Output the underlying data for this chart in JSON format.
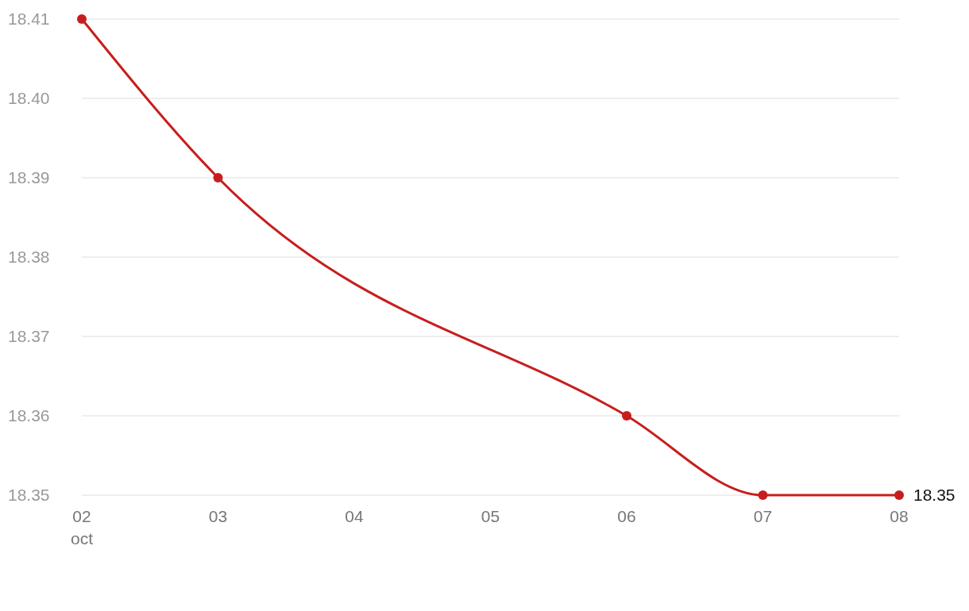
{
  "chart_data": {
    "type": "line",
    "x": [
      "--10-02",
      "--10-03",
      "--10-06",
      "--10-07",
      "--10-08"
    ],
    "series": [
      {
        "color": "#c71e1d",
        "values": [
          18.41,
          18.39,
          18.36,
          18.35,
          18.35
        ],
        "value_labels": [
          null,
          null,
          null,
          null,
          "18.35"
        ]
      }
    ],
    "xlim": [
      "--10-02",
      "--10-08"
    ],
    "xticks": [
      {
        "value": "--10-02",
        "label": "02\noct"
      },
      {
        "value": "--10-03",
        "label": "03"
      },
      {
        "value": "--10-04",
        "label": "04"
      },
      {
        "value": "--10-05",
        "label": "05"
      },
      {
        "value": "--10-06",
        "label": "06"
      },
      {
        "value": "--10-07",
        "label": "07"
      },
      {
        "value": "--10-08",
        "label": "08"
      }
    ],
    "ylim": [
      18.35,
      18.41
    ],
    "yticks": [
      18.35,
      18.36,
      18.37,
      18.38,
      18.39,
      {
        "value": 18.4,
        "label": "18.40"
      },
      18.41
    ],
    "grid": "y",
    "marker": "circle",
    "line_style": "solid"
  }
}
